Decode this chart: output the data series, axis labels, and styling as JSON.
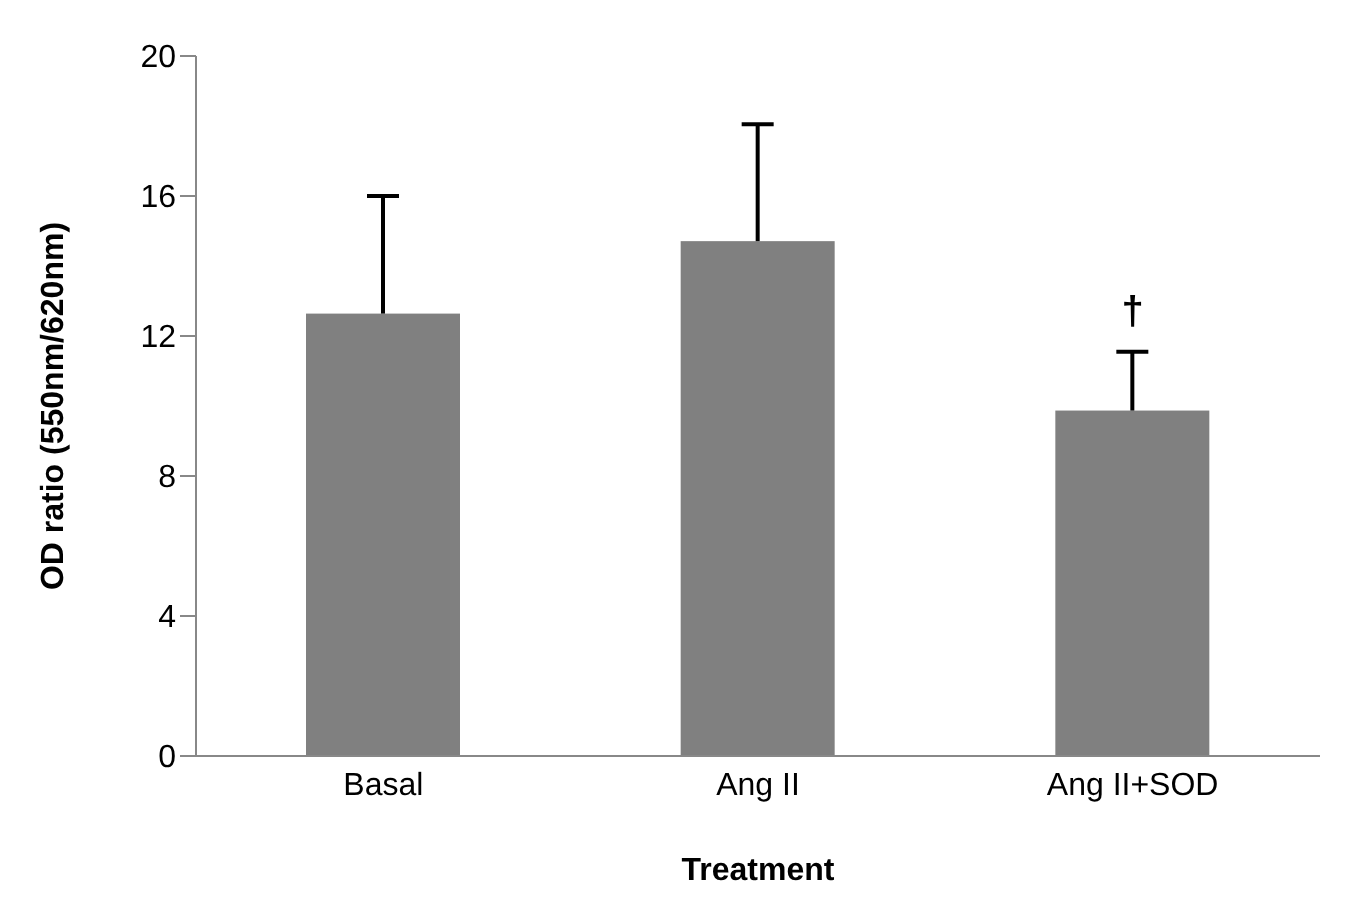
{
  "chart_data": {
    "type": "bar",
    "xlabel": "Treatment",
    "ylabel": "OD ratio (550nm/620nm)",
    "categories": [
      "Basal",
      "Ang II",
      "Ang II+SOD"
    ],
    "values": [
      12.64,
      14.71,
      9.87
    ],
    "errors": [
      [
        12.64,
        16.0
      ],
      [
        14.71,
        18.05
      ],
      [
        9.87,
        11.55
      ]
    ],
    "color": "#808080",
    "ylim": [
      0,
      20
    ],
    "yticks": [
      0,
      4,
      8,
      12,
      16,
      20
    ],
    "grid": false,
    "annotations": [
      {
        "text": "†",
        "x": "Ang II+SOD",
        "y": 11.55
      }
    ]
  }
}
